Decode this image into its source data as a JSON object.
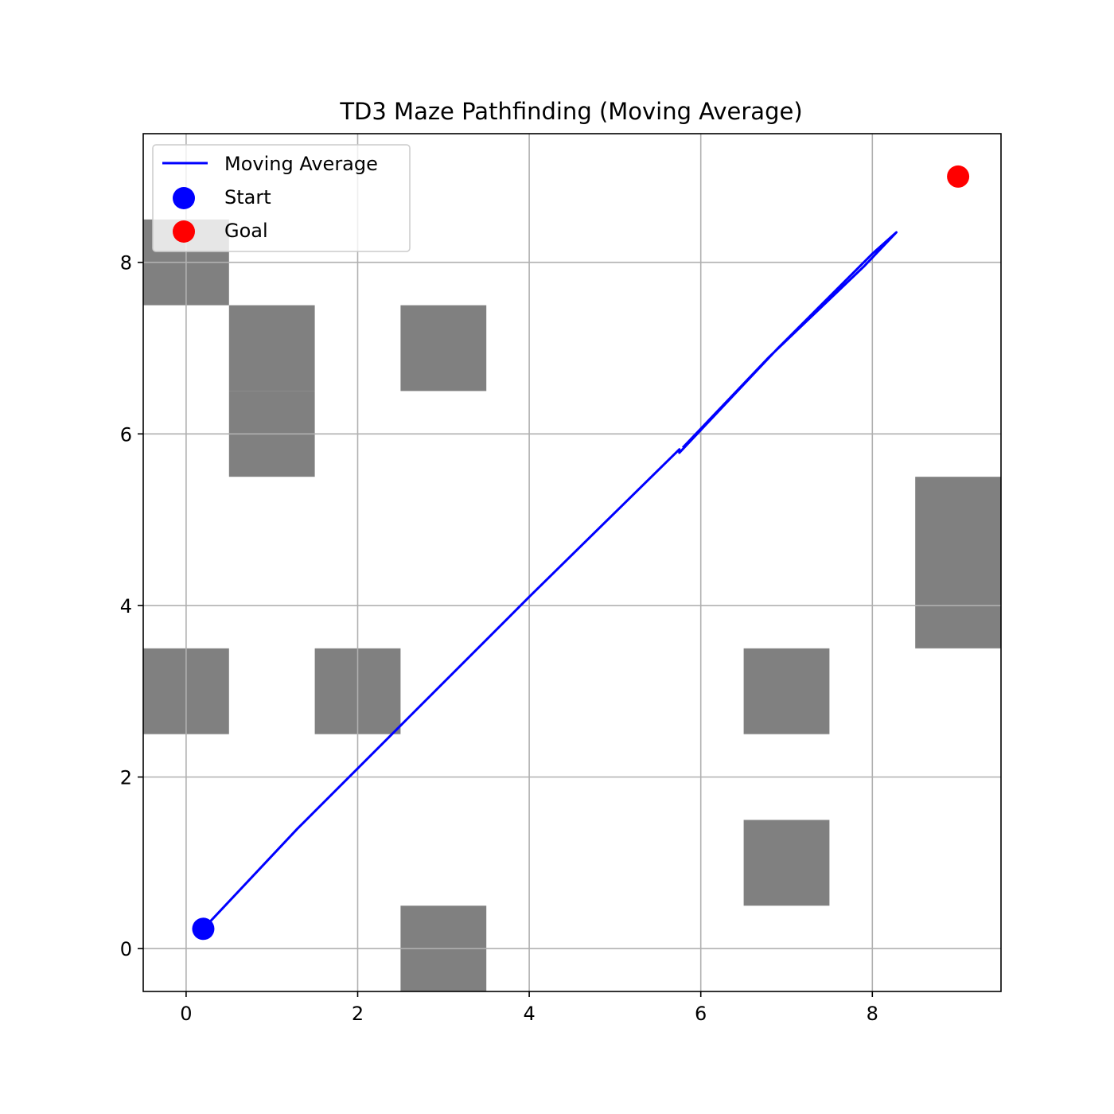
{
  "chart_data": {
    "type": "line",
    "title": "TD3 Maze Pathfinding (Moving Average)",
    "xlabel": "",
    "ylabel": "",
    "xlim": [
      -0.5,
      9.5
    ],
    "ylim": [
      -0.5,
      9.5
    ],
    "xticks": [
      0,
      2,
      4,
      6,
      8
    ],
    "yticks": [
      0,
      2,
      4,
      6,
      8
    ],
    "grid": true,
    "legend_position": "top-left",
    "legend": [
      {
        "label": "Moving Average",
        "kind": "line",
        "color": "#0000ff"
      },
      {
        "label": "Start",
        "kind": "marker",
        "color": "#0000ff"
      },
      {
        "label": "Goal",
        "kind": "marker",
        "color": "#ff0000"
      }
    ],
    "obstacles": [
      {
        "col": 0,
        "row": 8
      },
      {
        "col": 1,
        "row": 7
      },
      {
        "col": 1,
        "row": 6
      },
      {
        "col": 3,
        "row": 7
      },
      {
        "col": 9,
        "row": 5
      },
      {
        "col": 9,
        "row": 4
      },
      {
        "col": 0,
        "row": 3
      },
      {
        "col": 2,
        "row": 3
      },
      {
        "col": 7,
        "row": 3
      },
      {
        "col": 7,
        "row": 1
      },
      {
        "col": 3,
        "row": 0
      }
    ],
    "obstacle_color": "#808080",
    "series": [
      {
        "name": "Moving Average",
        "color": "#0000ff",
        "points": [
          [
            0.2,
            0.23
          ],
          [
            1.3,
            1.4
          ],
          [
            2.6,
            2.7
          ],
          [
            4.0,
            4.1
          ],
          [
            5.75,
            5.82
          ],
          [
            5.75,
            5.78
          ],
          [
            6.9,
            7.0
          ],
          [
            8.0,
            8.1
          ],
          [
            8.28,
            8.35
          ],
          [
            7.9,
            7.95
          ],
          [
            6.8,
            6.9
          ],
          [
            5.8,
            5.85
          ]
        ]
      }
    ],
    "start": {
      "x": 0.2,
      "y": 0.23,
      "color": "#0000ff"
    },
    "goal": {
      "x": 9.0,
      "y": 9.0,
      "color": "#ff0000"
    }
  }
}
